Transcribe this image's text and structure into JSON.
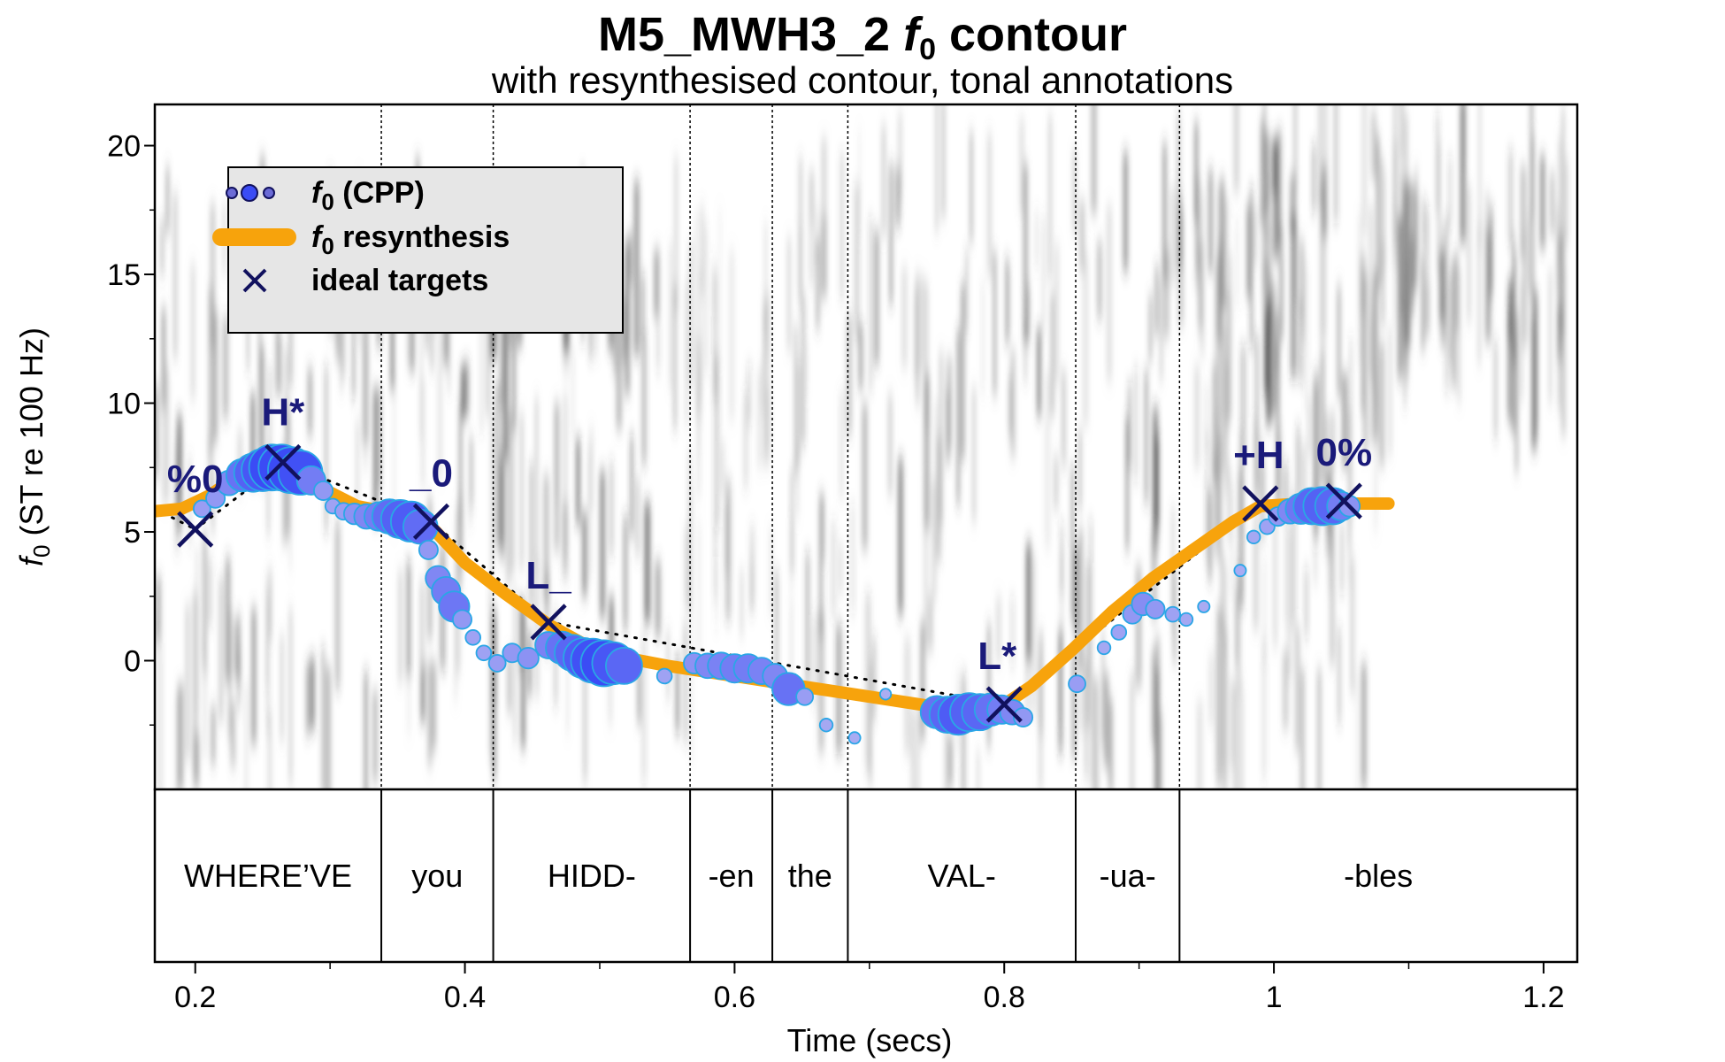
{
  "chart_data": {
    "type": "scatter",
    "title_main": "M5_MWH3_2 ",
    "title_italic": "f",
    "title_sub": "0",
    "title_end": " contour",
    "subtitle": "with resynthesised contour, tonal annotations",
    "xlabel": "Time (secs)",
    "ylabel_italic": "f",
    "ylabel_sub": "0",
    "ylabel_rest": " (ST re 100 Hz)",
    "xlim": [
      0.17,
      1.225
    ],
    "ylim": [
      -5,
      21.6
    ],
    "x_ticks": [
      0.2,
      0.4,
      0.6,
      0.8,
      1,
      1.2
    ],
    "x_tick_labels": [
      "0.2",
      "0.4",
      "0.6",
      "0.8",
      "1",
      "1.2"
    ],
    "y_ticks": [
      0,
      5,
      10,
      15,
      20
    ],
    "y_tick_labels": [
      "0",
      "5",
      "10",
      "15",
      "20"
    ],
    "legend": {
      "placement": "top-left",
      "entries": [
        {
          "italic": "f",
          "sub": "0",
          "rest": " (CPP)"
        },
        {
          "italic": "f",
          "sub": "0",
          "rest": " resynthesis"
        },
        {
          "italic": "",
          "sub": "",
          "rest": "ideal targets"
        }
      ]
    },
    "segments": [
      {
        "label": "WHERE’VE",
        "start": 0.17,
        "end": 0.338
      },
      {
        "label": "you",
        "start": 0.338,
        "end": 0.421
      },
      {
        "label": "HIDD-",
        "start": 0.421,
        "end": 0.567
      },
      {
        "label": "-en",
        "start": 0.567,
        "end": 0.628
      },
      {
        "label": "the",
        "start": 0.628,
        "end": 0.684
      },
      {
        "label": "VAL-",
        "start": 0.684,
        "end": 0.853
      },
      {
        "label": "-ua-",
        "start": 0.853,
        "end": 0.93
      },
      {
        "label": "-bles",
        "start": 0.93,
        "end": 1.225
      }
    ],
    "targets": [
      {
        "label": "%0",
        "x": 0.2,
        "y": 5.1
      },
      {
        "label": "H*",
        "x": 0.265,
        "y": 7.7
      },
      {
        "label": "_0",
        "x": 0.375,
        "y": 5.4
      },
      {
        "label": "L_",
        "x": 0.462,
        "y": 1.5
      },
      {
        "label": "L*",
        "x": 0.8,
        "y": -1.7
      },
      {
        "label": "+H",
        "x": 0.99,
        "y": 6.1
      },
      {
        "label": "0%",
        "x": 1.052,
        "y": 6.2
      }
    ],
    "resynthesis": {
      "x": [
        0.17,
        0.19,
        0.21,
        0.23,
        0.25,
        0.265,
        0.29,
        0.32,
        0.35,
        0.375,
        0.4,
        0.43,
        0.462,
        0.5,
        0.55,
        0.6,
        0.65,
        0.7,
        0.75,
        0.78,
        0.8,
        0.82,
        0.85,
        0.88,
        0.91,
        0.94,
        0.97,
        0.99,
        1.02,
        1.052,
        1.085
      ],
      "y": [
        5.8,
        5.9,
        6.4,
        7.1,
        7.5,
        7.5,
        6.8,
        6.0,
        5.7,
        5.2,
        3.8,
        2.6,
        1.4,
        0.3,
        -0.2,
        -0.6,
        -1.0,
        -1.4,
        -1.8,
        -1.9,
        -1.7,
        -1.0,
        0.4,
        1.9,
        3.2,
        4.3,
        5.4,
        6.0,
        6.1,
        6.1,
        6.1
      ]
    },
    "cpp_points": [
      {
        "x": 0.205,
        "y": 5.9,
        "s": 0.25
      },
      {
        "x": 0.215,
        "y": 6.3,
        "s": 0.3
      },
      {
        "x": 0.225,
        "y": 6.9,
        "s": 0.45
      },
      {
        "x": 0.235,
        "y": 7.2,
        "s": 0.65
      },
      {
        "x": 0.243,
        "y": 7.3,
        "s": 0.8
      },
      {
        "x": 0.25,
        "y": 7.4,
        "s": 0.9
      },
      {
        "x": 0.257,
        "y": 7.5,
        "s": 1.0
      },
      {
        "x": 0.264,
        "y": 7.5,
        "s": 1.0
      },
      {
        "x": 0.271,
        "y": 7.4,
        "s": 1.0
      },
      {
        "x": 0.278,
        "y": 7.3,
        "s": 0.95
      },
      {
        "x": 0.286,
        "y": 7.0,
        "s": 0.55
      },
      {
        "x": 0.295,
        "y": 6.6,
        "s": 0.3
      },
      {
        "x": 0.302,
        "y": 6.0,
        "s": 0.2
      },
      {
        "x": 0.31,
        "y": 5.8,
        "s": 0.25
      },
      {
        "x": 0.318,
        "y": 5.7,
        "s": 0.35
      },
      {
        "x": 0.327,
        "y": 5.6,
        "s": 0.45
      },
      {
        "x": 0.336,
        "y": 5.6,
        "s": 0.55
      },
      {
        "x": 0.344,
        "y": 5.6,
        "s": 0.7
      },
      {
        "x": 0.352,
        "y": 5.5,
        "s": 0.8
      },
      {
        "x": 0.36,
        "y": 5.4,
        "s": 0.85
      },
      {
        "x": 0.367,
        "y": 5.2,
        "s": 0.7
      },
      {
        "x": 0.373,
        "y": 4.3,
        "s": 0.3
      },
      {
        "x": 0.38,
        "y": 3.2,
        "s": 0.45
      },
      {
        "x": 0.386,
        "y": 2.7,
        "s": 0.55
      },
      {
        "x": 0.392,
        "y": 2.1,
        "s": 0.6
      },
      {
        "x": 0.398,
        "y": 1.6,
        "s": 0.3
      },
      {
        "x": 0.406,
        "y": 0.9,
        "s": 0.2
      },
      {
        "x": 0.414,
        "y": 0.3,
        "s": 0.2
      },
      {
        "x": 0.424,
        "y": -0.1,
        "s": 0.25
      },
      {
        "x": 0.435,
        "y": 0.3,
        "s": 0.3
      },
      {
        "x": 0.447,
        "y": 0.1,
        "s": 0.35
      },
      {
        "x": 0.462,
        "y": 0.6,
        "s": 0.5
      },
      {
        "x": 0.472,
        "y": 0.5,
        "s": 0.65
      },
      {
        "x": 0.48,
        "y": 0.3,
        "s": 0.75
      },
      {
        "x": 0.488,
        "y": 0.1,
        "s": 0.85
      },
      {
        "x": 0.495,
        "y": 0.0,
        "s": 0.95
      },
      {
        "x": 0.503,
        "y": -0.1,
        "s": 1.0
      },
      {
        "x": 0.51,
        "y": -0.1,
        "s": 0.9
      },
      {
        "x": 0.518,
        "y": -0.2,
        "s": 0.75
      },
      {
        "x": 0.548,
        "y": -0.6,
        "s": 0.2
      },
      {
        "x": 0.57,
        "y": -0.1,
        "s": 0.35
      },
      {
        "x": 0.58,
        "y": -0.2,
        "s": 0.45
      },
      {
        "x": 0.59,
        "y": -0.2,
        "s": 0.5
      },
      {
        "x": 0.6,
        "y": -0.3,
        "s": 0.55
      },
      {
        "x": 0.61,
        "y": -0.3,
        "s": 0.55
      },
      {
        "x": 0.62,
        "y": -0.4,
        "s": 0.5
      },
      {
        "x": 0.63,
        "y": -0.6,
        "s": 0.45
      },
      {
        "x": 0.64,
        "y": -1.1,
        "s": 0.65
      },
      {
        "x": 0.652,
        "y": -1.4,
        "s": 0.25
      },
      {
        "x": 0.668,
        "y": -2.5,
        "s": 0.15
      },
      {
        "x": 0.689,
        "y": -3.0,
        "s": 0.12
      },
      {
        "x": 0.712,
        "y": -1.3,
        "s": 0.1
      },
      {
        "x": 0.75,
        "y": -2.0,
        "s": 0.65
      },
      {
        "x": 0.758,
        "y": -2.1,
        "s": 0.75
      },
      {
        "x": 0.766,
        "y": -2.1,
        "s": 0.85
      },
      {
        "x": 0.774,
        "y": -2.0,
        "s": 0.8
      },
      {
        "x": 0.782,
        "y": -2.0,
        "s": 0.75
      },
      {
        "x": 0.79,
        "y": -1.9,
        "s": 0.65
      },
      {
        "x": 0.798,
        "y": -1.9,
        "s": 0.55
      },
      {
        "x": 0.806,
        "y": -2.0,
        "s": 0.45
      },
      {
        "x": 0.814,
        "y": -2.2,
        "s": 0.3
      },
      {
        "x": 0.854,
        "y": -0.9,
        "s": 0.25
      },
      {
        "x": 0.874,
        "y": 0.5,
        "s": 0.15
      },
      {
        "x": 0.885,
        "y": 1.1,
        "s": 0.2
      },
      {
        "x": 0.895,
        "y": 1.8,
        "s": 0.3
      },
      {
        "x": 0.903,
        "y": 2.2,
        "s": 0.4
      },
      {
        "x": 0.912,
        "y": 2.0,
        "s": 0.3
      },
      {
        "x": 0.925,
        "y": 1.8,
        "s": 0.2
      },
      {
        "x": 0.935,
        "y": 1.6,
        "s": 0.15
      },
      {
        "x": 0.948,
        "y": 2.1,
        "s": 0.12
      },
      {
        "x": 0.975,
        "y": 3.5,
        "s": 0.12
      },
      {
        "x": 0.985,
        "y": 4.8,
        "s": 0.15
      },
      {
        "x": 0.995,
        "y": 5.2,
        "s": 0.2
      },
      {
        "x": 1.003,
        "y": 5.6,
        "s": 0.3
      },
      {
        "x": 1.012,
        "y": 5.8,
        "s": 0.45
      },
      {
        "x": 1.02,
        "y": 5.9,
        "s": 0.6
      },
      {
        "x": 1.028,
        "y": 6.0,
        "s": 0.75
      },
      {
        "x": 1.036,
        "y": 6.0,
        "s": 0.8
      },
      {
        "x": 1.044,
        "y": 6.0,
        "s": 0.75
      },
      {
        "x": 1.05,
        "y": 6.0,
        "s": 0.55
      },
      {
        "x": 1.056,
        "y": 6.0,
        "s": 0.35
      }
    ],
    "colors": {
      "cpp_fill_strong": "#3b4cf5",
      "cpp_fill_weak": "#b8b8f2",
      "cpp_stroke": "#2aa6e6",
      "resynthesis": "#f7a30c",
      "target": "#11115e",
      "legend_bg": "#e6e6e6"
    }
  }
}
